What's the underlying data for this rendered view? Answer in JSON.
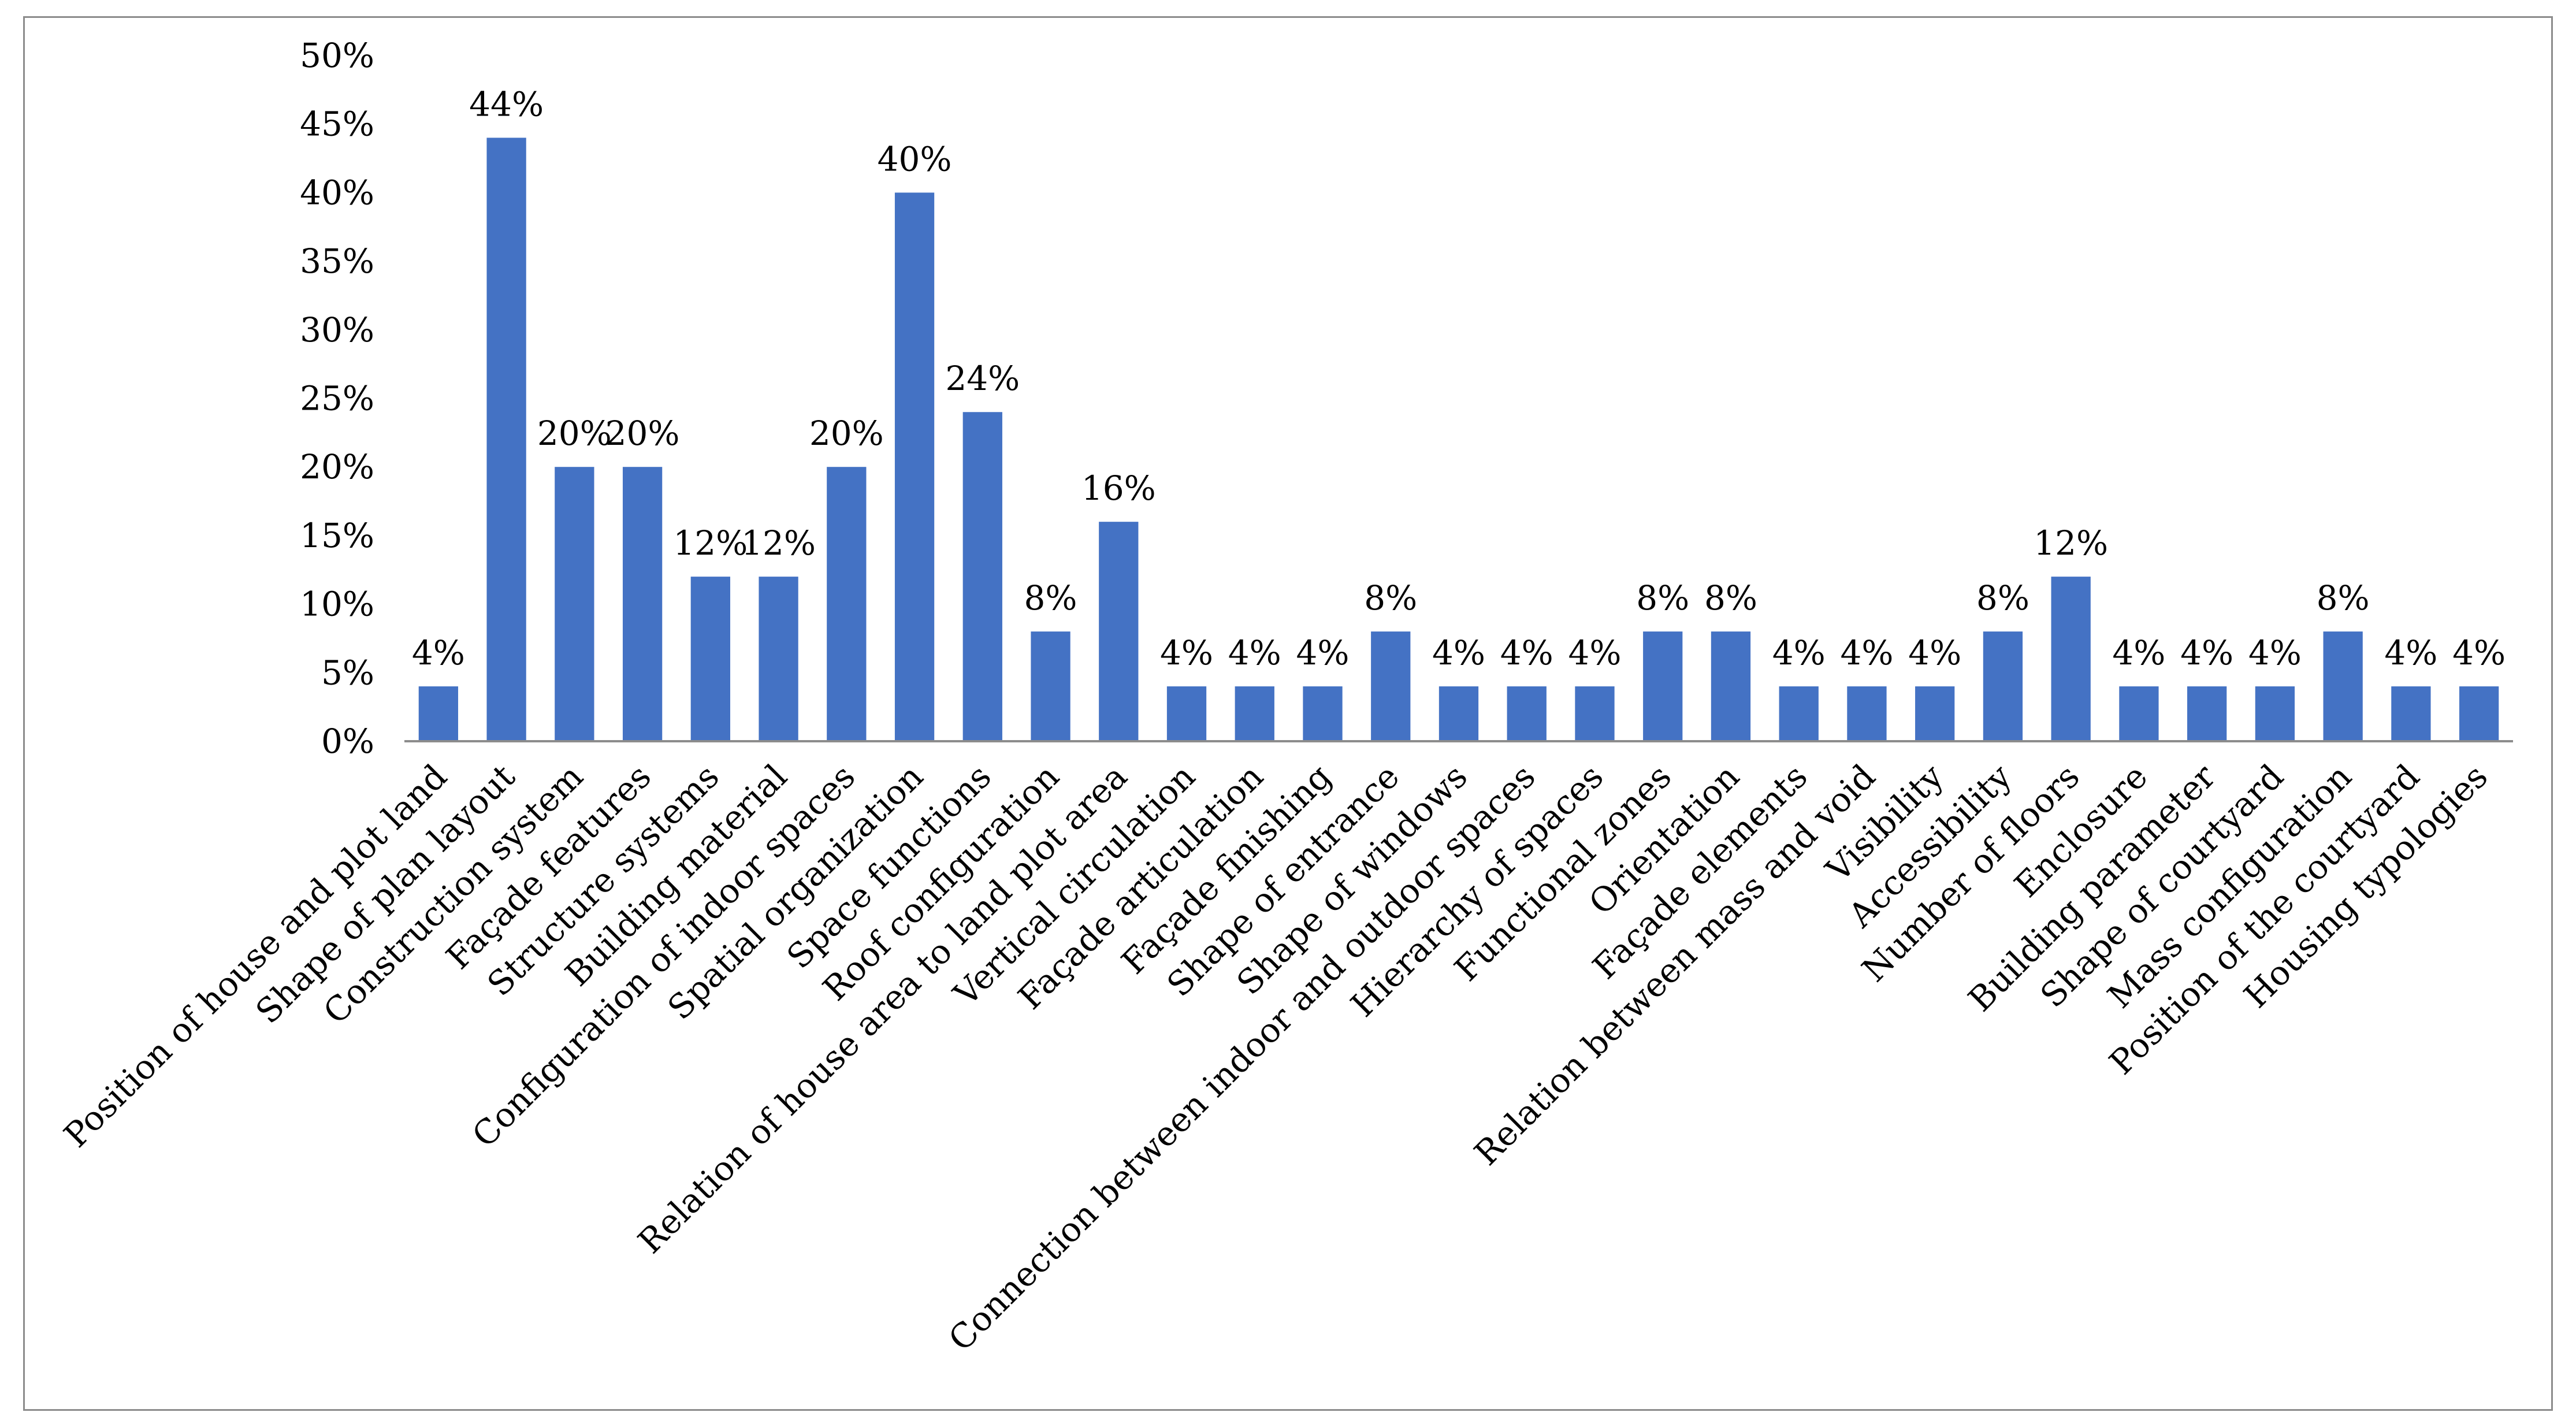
{
  "chart_data": {
    "type": "bar",
    "title": "",
    "xlabel": "",
    "ylabel": "",
    "ylim": [
      0,
      50
    ],
    "y_ticks": [
      "0%",
      "5%",
      "10%",
      "15%",
      "20%",
      "25%",
      "30%",
      "35%",
      "40%",
      "45%",
      "50%"
    ],
    "y_tick_values": [
      0,
      5,
      10,
      15,
      20,
      25,
      30,
      35,
      40,
      45,
      50
    ],
    "grid": false,
    "legend": "none",
    "bar_color": "#4472C4",
    "categories": [
      "Position of house and plot land",
      "Shape of plan layout",
      "Construction system",
      "Façade features",
      "Structure systems",
      "Building material",
      "Configuration of indoor spaces",
      "Spatial organization",
      "Space functions",
      "Roof configuration",
      "Relation of house area to land plot area",
      "Vertical circulation",
      "Façade articulation",
      "Façade finishing",
      "Shape of entrance",
      "Shape of windows",
      "Connection between indoor and outdoor spaces",
      "Hierarchy of spaces",
      "Functional zones",
      "Orientation",
      "Façade elements",
      "Relation between mass and void",
      "Visibility",
      "Accessibility",
      "Number of floors",
      "Enclosure",
      "Building parameter",
      "Shape of courtyard",
      "Mass configuration",
      "Position of the courtyard",
      "Housing typologies"
    ],
    "values": [
      4,
      44,
      20,
      20,
      12,
      12,
      20,
      40,
      24,
      8,
      16,
      4,
      4,
      4,
      8,
      4,
      4,
      4,
      8,
      8,
      4,
      4,
      4,
      8,
      12,
      4,
      4,
      4,
      8,
      4,
      4
    ],
    "data_labels": [
      "4%",
      "44%",
      "20%",
      "20%",
      "12%",
      "12%",
      "20%",
      "40%",
      "24%",
      "8%",
      "16%",
      "4%",
      "4%",
      "4%",
      "8%",
      "4%",
      "4%",
      "4%",
      "8%",
      "8%",
      "4%",
      "4%",
      "4%",
      "8%",
      "12%",
      "4%",
      "4%",
      "4%",
      "8%",
      "4%",
      "4%"
    ]
  }
}
